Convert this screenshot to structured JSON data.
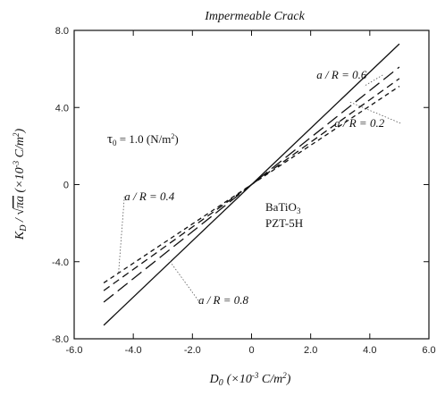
{
  "chart_data": {
    "type": "line",
    "title": "Impermeable Crack",
    "xlabel": {
      "main": "D",
      "sub": "0",
      "unit": "(×10",
      "exp": "-3",
      "unit_end": " C/m",
      "unit_exp": "2",
      "close": ")"
    },
    "ylabel": {
      "main": "K",
      "sub": "D",
      "slash": " / ",
      "sqrt": "√",
      "sqrt_arg": "πa",
      "unit": "  (×10",
      "exp": "-3",
      "unit_end": " C/m",
      "unit_exp": "2",
      "close": ")"
    },
    "xlim": [
      -6.0,
      6.0
    ],
    "ylim": [
      -8.0,
      8.0
    ],
    "x_ticks": [
      "-6.0",
      "-4.0",
      "-2.0",
      "0",
      "2.0",
      "4.0",
      "6.0"
    ],
    "x_tick_values": [
      -6,
      -4,
      -2,
      0,
      2,
      4,
      6
    ],
    "y_ticks": [
      "8.0",
      "4.0",
      "0",
      "-4.0",
      "-8.0"
    ],
    "y_tick_values": [
      8,
      4,
      0,
      -4,
      -8
    ],
    "grid": false,
    "series": [
      {
        "name": "a / R = 0.8",
        "x": [
          -5.0,
          5.0
        ],
        "y": [
          -7.3,
          7.3
        ],
        "dash": "solid"
      },
      {
        "name": "a / R = 0.6",
        "x": [
          -5.0,
          5.0
        ],
        "y": [
          -6.1,
          6.1
        ],
        "dash": "long"
      },
      {
        "name": "a / R = 0.4",
        "x": [
          -5.0,
          5.0
        ],
        "y": [
          -5.5,
          5.5
        ],
        "dash": "medium"
      },
      {
        "name": "a / R = 0.2",
        "x": [
          -5.0,
          5.0
        ],
        "y": [
          -5.1,
          5.1
        ],
        "dash": "short"
      }
    ],
    "annotations": {
      "tau": {
        "symbol": "τ",
        "sub": "0",
        "value": " = 1.0 (N/m",
        "exp": "2",
        "close": ")"
      },
      "material_1": "BaTiO",
      "material_1_sub": "3",
      "material_2": "PZT-5H",
      "labels": [
        {
          "text": "a / R = 0.6",
          "x": 2.2,
          "y": 5.5,
          "pointer_to": [
            3.8,
            5.1
          ]
        },
        {
          "text": "a / R = 0.2",
          "x": 2.8,
          "y": 3.0,
          "pointer_to": [
            3.3,
            4.3
          ]
        },
        {
          "text": "a / R = 0.4",
          "x": -4.3,
          "y": -0.8,
          "pointer_to": [
            -4.5,
            -4.6
          ]
        },
        {
          "text": "a / R = 0.8",
          "x": -1.8,
          "y": -6.2,
          "pointer_to": [
            -2.8,
            -3.9
          ]
        }
      ]
    }
  }
}
